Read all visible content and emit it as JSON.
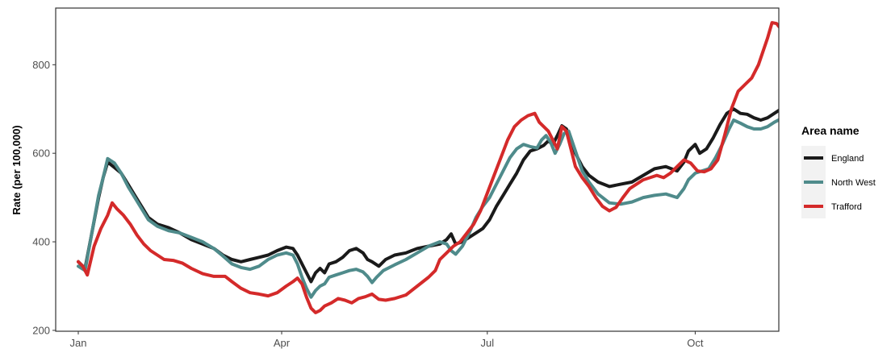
{
  "chart_data": {
    "type": "line",
    "xlabel": "",
    "ylabel": "Rate (per 100,000)",
    "x_ticks": [
      "Jan",
      "Apr",
      "Jul",
      "Oct"
    ],
    "y_ticks": [
      200,
      400,
      600,
      800
    ],
    "ylim": [
      198,
      928
    ],
    "grid": false,
    "legend": {
      "title": "Area name",
      "position": "right"
    },
    "x_unit": "days since 1 Jan",
    "xlim": [
      -10,
      310
    ],
    "x_tick_positions": [
      0,
      90,
      181,
      273
    ],
    "series": [
      {
        "name": "England",
        "color": "#1a1a1a",
        "points": [
          [
            0,
            355
          ],
          [
            3,
            340
          ],
          [
            6,
            420
          ],
          [
            9,
            500
          ],
          [
            11,
            545
          ],
          [
            13,
            580
          ],
          [
            16,
            568
          ],
          [
            19,
            555
          ],
          [
            22,
            530
          ],
          [
            25,
            505
          ],
          [
            28,
            480
          ],
          [
            31,
            455
          ],
          [
            35,
            440
          ],
          [
            40,
            432
          ],
          [
            45,
            420
          ],
          [
            50,
            405
          ],
          [
            55,
            395
          ],
          [
            60,
            385
          ],
          [
            64,
            370
          ],
          [
            68,
            360
          ],
          [
            72,
            355
          ],
          [
            76,
            360
          ],
          [
            80,
            365
          ],
          [
            84,
            370
          ],
          [
            88,
            380
          ],
          [
            92,
            388
          ],
          [
            95,
            385
          ],
          [
            97,
            370
          ],
          [
            99,
            350
          ],
          [
            101,
            330
          ],
          [
            103,
            310
          ],
          [
            105,
            330
          ],
          [
            107,
            340
          ],
          [
            109,
            330
          ],
          [
            111,
            350
          ],
          [
            114,
            355
          ],
          [
            117,
            365
          ],
          [
            120,
            380
          ],
          [
            123,
            385
          ],
          [
            126,
            375
          ],
          [
            128,
            360
          ],
          [
            130,
            355
          ],
          [
            133,
            345
          ],
          [
            136,
            360
          ],
          [
            140,
            370
          ],
          [
            145,
            375
          ],
          [
            150,
            385
          ],
          [
            155,
            390
          ],
          [
            160,
            395
          ],
          [
            163,
            405
          ],
          [
            165,
            418
          ],
          [
            167,
            395
          ],
          [
            170,
            400
          ],
          [
            173,
            410
          ],
          [
            176,
            420
          ],
          [
            179,
            430
          ],
          [
            182,
            450
          ],
          [
            185,
            480
          ],
          [
            188,
            505
          ],
          [
            191,
            530
          ],
          [
            194,
            555
          ],
          [
            197,
            585
          ],
          [
            200,
            605
          ],
          [
            203,
            610
          ],
          [
            206,
            618
          ],
          [
            208,
            628
          ],
          [
            210,
            620
          ],
          [
            212,
            640
          ],
          [
            214,
            662
          ],
          [
            216,
            655
          ],
          [
            218,
            630
          ],
          [
            220,
            600
          ],
          [
            223,
            570
          ],
          [
            226,
            550
          ],
          [
            230,
            535
          ],
          [
            235,
            525
          ],
          [
            240,
            530
          ],
          [
            245,
            535
          ],
          [
            250,
            550
          ],
          [
            255,
            565
          ],
          [
            260,
            570
          ],
          [
            265,
            560
          ],
          [
            268,
            580
          ],
          [
            270,
            605
          ],
          [
            273,
            620
          ],
          [
            275,
            600
          ],
          [
            278,
            610
          ],
          [
            281,
            635
          ],
          [
            284,
            665
          ],
          [
            287,
            690
          ],
          [
            290,
            700
          ],
          [
            293,
            690
          ],
          [
            296,
            688
          ],
          [
            299,
            680
          ],
          [
            302,
            675
          ],
          [
            305,
            680
          ],
          [
            308,
            690
          ],
          [
            311,
            700
          ]
        ]
      },
      {
        "name": "North West",
        "color": "#4f8b8b",
        "points": [
          [
            0,
            345
          ],
          [
            3,
            335
          ],
          [
            6,
            420
          ],
          [
            9,
            505
          ],
          [
            11,
            545
          ],
          [
            13,
            588
          ],
          [
            16,
            578
          ],
          [
            19,
            555
          ],
          [
            22,
            525
          ],
          [
            25,
            500
          ],
          [
            28,
            475
          ],
          [
            31,
            450
          ],
          [
            35,
            435
          ],
          [
            40,
            425
          ],
          [
            45,
            420
          ],
          [
            50,
            410
          ],
          [
            55,
            400
          ],
          [
            60,
            385
          ],
          [
            64,
            368
          ],
          [
            68,
            350
          ],
          [
            72,
            342
          ],
          [
            76,
            338
          ],
          [
            80,
            345
          ],
          [
            84,
            360
          ],
          [
            88,
            370
          ],
          [
            92,
            375
          ],
          [
            95,
            370
          ],
          [
            97,
            350
          ],
          [
            99,
            320
          ],
          [
            101,
            295
          ],
          [
            103,
            275
          ],
          [
            105,
            290
          ],
          [
            107,
            300
          ],
          [
            109,
            305
          ],
          [
            111,
            320
          ],
          [
            114,
            325
          ],
          [
            117,
            330
          ],
          [
            120,
            335
          ],
          [
            123,
            338
          ],
          [
            126,
            332
          ],
          [
            128,
            322
          ],
          [
            130,
            308
          ],
          [
            132,
            320
          ],
          [
            135,
            335
          ],
          [
            140,
            348
          ],
          [
            145,
            360
          ],
          [
            150,
            375
          ],
          [
            155,
            390
          ],
          [
            160,
            400
          ],
          [
            163,
            395
          ],
          [
            165,
            380
          ],
          [
            167,
            372
          ],
          [
            170,
            390
          ],
          [
            173,
            420
          ],
          [
            176,
            455
          ],
          [
            179,
            480
          ],
          [
            182,
            500
          ],
          [
            185,
            530
          ],
          [
            188,
            560
          ],
          [
            191,
            590
          ],
          [
            194,
            610
          ],
          [
            197,
            620
          ],
          [
            200,
            615
          ],
          [
            203,
            612
          ],
          [
            205,
            630
          ],
          [
            207,
            640
          ],
          [
            209,
            625
          ],
          [
            211,
            600
          ],
          [
            213,
            620
          ],
          [
            215,
            645
          ],
          [
            217,
            650
          ],
          [
            219,
            620
          ],
          [
            221,
            590
          ],
          [
            223,
            560
          ],
          [
            226,
            535
          ],
          [
            230,
            508
          ],
          [
            235,
            488
          ],
          [
            240,
            485
          ],
          [
            245,
            490
          ],
          [
            250,
            500
          ],
          [
            255,
            505
          ],
          [
            260,
            508
          ],
          [
            265,
            500
          ],
          [
            268,
            520
          ],
          [
            270,
            540
          ],
          [
            273,
            555
          ],
          [
            276,
            560
          ],
          [
            279,
            565
          ],
          [
            282,
            590
          ],
          [
            285,
            620
          ],
          [
            288,
            655
          ],
          [
            290,
            675
          ],
          [
            293,
            668
          ],
          [
            296,
            660
          ],
          [
            299,
            655
          ],
          [
            302,
            655
          ],
          [
            305,
            660
          ],
          [
            308,
            670
          ],
          [
            311,
            678
          ]
        ]
      },
      {
        "name": "Trafford",
        "color": "#d42a2a",
        "points": [
          [
            0,
            355
          ],
          [
            2,
            345
          ],
          [
            4,
            325
          ],
          [
            7,
            390
          ],
          [
            10,
            430
          ],
          [
            13,
            460
          ],
          [
            15,
            488
          ],
          [
            17,
            475
          ],
          [
            20,
            460
          ],
          [
            23,
            440
          ],
          [
            26,
            415
          ],
          [
            29,
            395
          ],
          [
            32,
            380
          ],
          [
            35,
            370
          ],
          [
            38,
            360
          ],
          [
            42,
            358
          ],
          [
            46,
            352
          ],
          [
            50,
            340
          ],
          [
            55,
            328
          ],
          [
            60,
            322
          ],
          [
            65,
            322
          ],
          [
            68,
            310
          ],
          [
            72,
            295
          ],
          [
            76,
            285
          ],
          [
            80,
            282
          ],
          [
            84,
            278
          ],
          [
            88,
            285
          ],
          [
            92,
            300
          ],
          [
            95,
            310
          ],
          [
            97,
            318
          ],
          [
            99,
            305
          ],
          [
            101,
            275
          ],
          [
            103,
            250
          ],
          [
            105,
            240
          ],
          [
            107,
            245
          ],
          [
            109,
            255
          ],
          [
            112,
            262
          ],
          [
            115,
            272
          ],
          [
            118,
            268
          ],
          [
            121,
            262
          ],
          [
            124,
            272
          ],
          [
            127,
            276
          ],
          [
            130,
            282
          ],
          [
            133,
            270
          ],
          [
            136,
            268
          ],
          [
            140,
            272
          ],
          [
            145,
            280
          ],
          [
            150,
            300
          ],
          [
            155,
            320
          ],
          [
            158,
            335
          ],
          [
            160,
            360
          ],
          [
            163,
            375
          ],
          [
            166,
            390
          ],
          [
            169,
            400
          ],
          [
            172,
            420
          ],
          [
            175,
            440
          ],
          [
            178,
            470
          ],
          [
            181,
            510
          ],
          [
            184,
            550
          ],
          [
            187,
            590
          ],
          [
            190,
            630
          ],
          [
            193,
            660
          ],
          [
            196,
            675
          ],
          [
            199,
            685
          ],
          [
            202,
            690
          ],
          [
            204,
            670
          ],
          [
            206,
            660
          ],
          [
            208,
            650
          ],
          [
            210,
            630
          ],
          [
            212,
            610
          ],
          [
            214,
            660
          ],
          [
            216,
            650
          ],
          [
            218,
            610
          ],
          [
            220,
            570
          ],
          [
            223,
            545
          ],
          [
            226,
            525
          ],
          [
            229,
            500
          ],
          [
            232,
            480
          ],
          [
            235,
            470
          ],
          [
            238,
            478
          ],
          [
            241,
            500
          ],
          [
            244,
            520
          ],
          [
            247,
            530
          ],
          [
            250,
            540
          ],
          [
            253,
            545
          ],
          [
            256,
            550
          ],
          [
            259,
            545
          ],
          [
            262,
            555
          ],
          [
            265,
            570
          ],
          [
            268,
            585
          ],
          [
            271,
            578
          ],
          [
            274,
            560
          ],
          [
            277,
            558
          ],
          [
            280,
            565
          ],
          [
            283,
            585
          ],
          [
            286,
            640
          ],
          [
            289,
            700
          ],
          [
            292,
            740
          ],
          [
            295,
            755
          ],
          [
            298,
            770
          ],
          [
            301,
            800
          ],
          [
            303,
            830
          ],
          [
            305,
            860
          ],
          [
            307,
            895
          ],
          [
            309,
            893
          ],
          [
            311,
            880
          ],
          [
            313,
            860
          ],
          [
            315,
            840
          ],
          [
            317,
            815
          ]
        ]
      }
    ]
  }
}
